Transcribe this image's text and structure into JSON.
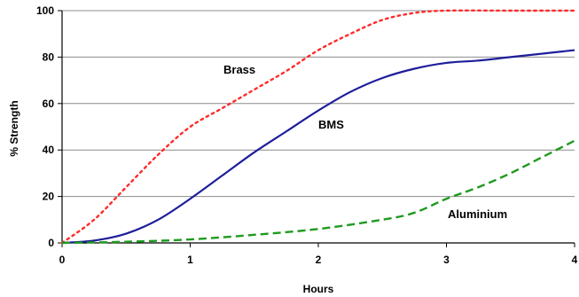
{
  "chart_data": {
    "type": "line",
    "title": "",
    "xlabel": "Hours",
    "ylabel": "% Strength",
    "xlim": [
      0,
      4
    ],
    "ylim": [
      0,
      100
    ],
    "x_ticks": [
      "0",
      "1",
      "2",
      "3",
      "4"
    ],
    "y_ticks": [
      "0",
      "20",
      "40",
      "60",
      "80",
      "100"
    ],
    "grid": "horizontal",
    "legend": "none",
    "series": [
      {
        "name": "Brass",
        "color": "#ff2a2a",
        "style": "dotted",
        "points": [
          [
            0,
            0
          ],
          [
            0.25,
            10
          ],
          [
            0.5,
            24
          ],
          [
            0.75,
            38
          ],
          [
            1,
            50
          ],
          [
            1.25,
            58
          ],
          [
            1.5,
            66
          ],
          [
            1.75,
            74
          ],
          [
            2,
            83
          ],
          [
            2.25,
            90
          ],
          [
            2.5,
            96
          ],
          [
            2.75,
            99
          ],
          [
            3,
            100
          ],
          [
            3.5,
            100
          ],
          [
            4,
            100
          ]
        ]
      },
      {
        "name": "BMS",
        "color": "#1e1e9a",
        "style": "solid",
        "points": [
          [
            0,
            0
          ],
          [
            0.25,
            1
          ],
          [
            0.5,
            4
          ],
          [
            0.75,
            10
          ],
          [
            1,
            19
          ],
          [
            1.25,
            29
          ],
          [
            1.5,
            39
          ],
          [
            1.75,
            48
          ],
          [
            2,
            57
          ],
          [
            2.25,
            65
          ],
          [
            2.5,
            71
          ],
          [
            2.75,
            75
          ],
          [
            3,
            77.5
          ],
          [
            3.25,
            78.5
          ],
          [
            3.5,
            80
          ],
          [
            3.75,
            81.5
          ],
          [
            4,
            83
          ]
        ]
      },
      {
        "name": "Aluminium",
        "color": "#1f9a1f",
        "style": "dashed",
        "points": [
          [
            0,
            0
          ],
          [
            0.5,
            0.5
          ],
          [
            1,
            1.5
          ],
          [
            1.5,
            3.5
          ],
          [
            2,
            6
          ],
          [
            2.5,
            10
          ],
          [
            2.75,
            13
          ],
          [
            3,
            19
          ],
          [
            3.25,
            24
          ],
          [
            3.5,
            30
          ],
          [
            3.75,
            37
          ],
          [
            4,
            44
          ]
        ]
      }
    ]
  }
}
